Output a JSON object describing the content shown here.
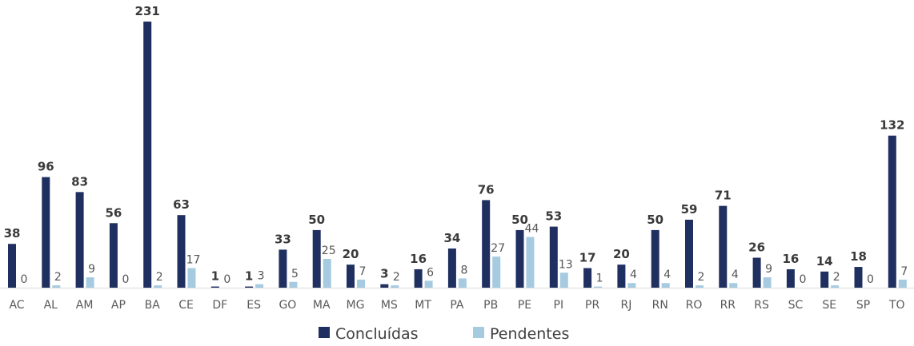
{
  "chart_data": {
    "type": "bar",
    "categories": [
      "AC",
      "AL",
      "AM",
      "AP",
      "BA",
      "CE",
      "DF",
      "ES",
      "GO",
      "MA",
      "MG",
      "MS",
      "MT",
      "PA",
      "PB",
      "PE",
      "PI",
      "PR",
      "RJ",
      "RN",
      "RO",
      "RR",
      "RS",
      "SC",
      "SE",
      "SP",
      "TO"
    ],
    "series": [
      {
        "name": "Concluídas",
        "color": "#1f2f5f",
        "values": [
          38,
          96,
          83,
          56,
          231,
          63,
          1,
          1,
          33,
          50,
          20,
          3,
          16,
          34,
          76,
          50,
          53,
          17,
          20,
          50,
          59,
          71,
          26,
          16,
          14,
          18,
          132
        ]
      },
      {
        "name": "Pendentes",
        "color": "#a6cbe0",
        "values": [
          0,
          2,
          9,
          0,
          2,
          17,
          0,
          3,
          5,
          25,
          7,
          2,
          6,
          8,
          27,
          44,
          13,
          1,
          4,
          4,
          2,
          4,
          9,
          0,
          2,
          0,
          7
        ]
      }
    ],
    "ylim": [
      0,
      231
    ],
    "grid": false,
    "legend": "bottom",
    "data_labels": true
  }
}
